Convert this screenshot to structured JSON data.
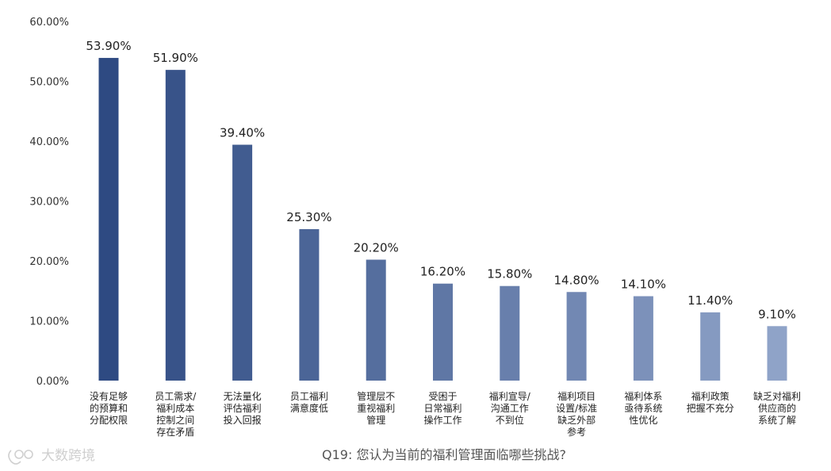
{
  "chart_data": {
    "type": "bar",
    "title": "Q19: 您认为当前的福利管理面临哪些挑战?",
    "xlabel": "",
    "ylabel": "",
    "ylim": [
      0,
      60
    ],
    "yticks": [
      "0.00%",
      "10.00%",
      "20.00%",
      "30.00%",
      "40.00%",
      "50.00%",
      "60.00%"
    ],
    "grid": false,
    "categories": [
      [
        "没有足够",
        "的预算和",
        "分配权限"
      ],
      [
        "员工需求/",
        "福利成本",
        "控制之间",
        "存在矛盾"
      ],
      [
        "无法量化",
        "评估福利",
        "投入回报"
      ],
      [
        "员工福利",
        "满意度低"
      ],
      [
        "管理层不",
        "重视福利",
        "管理"
      ],
      [
        "受困于",
        "日常福利",
        "操作工作"
      ],
      [
        "福利宣导/",
        "沟通工作",
        "不到位"
      ],
      [
        "福利项目",
        "设置/标准",
        "缺乏外部",
        "参考"
      ],
      [
        "福利体系",
        "亟待系统",
        "性优化"
      ],
      [
        "福利政策",
        "把握不充分"
      ],
      [
        "缺乏对福利",
        "供应商的",
        "系统了解"
      ]
    ],
    "values": [
      53.9,
      51.9,
      39.4,
      25.3,
      20.2,
      16.2,
      15.8,
      14.8,
      14.1,
      11.4,
      9.1
    ],
    "value_labels": [
      "53.90%",
      "51.90%",
      "39.40%",
      "25.30%",
      "20.20%",
      "16.20%",
      "15.80%",
      "14.80%",
      "14.10%",
      "11.40%",
      "9.10%"
    ],
    "colors": {
      "bar_start": "#2e4a82",
      "bar_end": "#8fa3c8"
    }
  },
  "watermark": {
    "text": "大数跨境",
    "icon": "logo-icon"
  }
}
